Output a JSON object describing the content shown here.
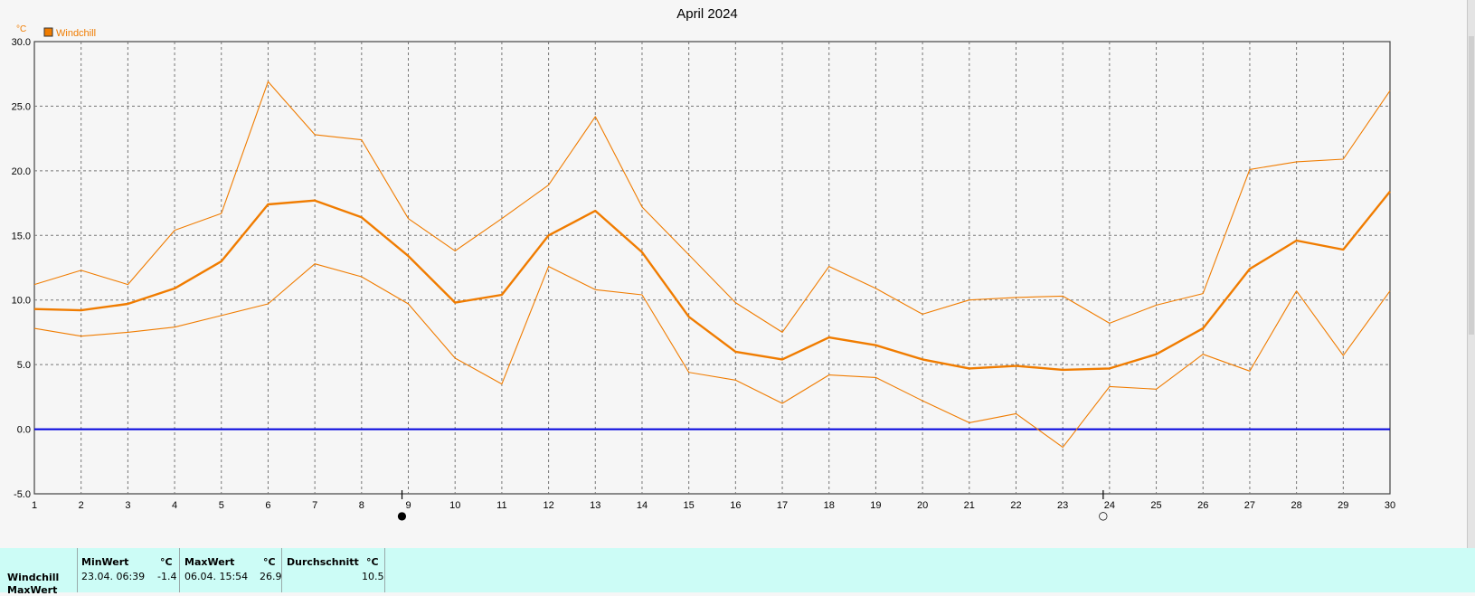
{
  "chart_data": {
    "type": "line",
    "title": "April 2024",
    "ylabel": "°C",
    "xlabel": "",
    "x": [
      1,
      2,
      3,
      4,
      5,
      6,
      7,
      8,
      9,
      10,
      11,
      12,
      13,
      14,
      15,
      16,
      17,
      18,
      19,
      20,
      21,
      22,
      23,
      24,
      25,
      26,
      27,
      28,
      29,
      30
    ],
    "xlim": [
      1,
      30
    ],
    "ylim": [
      -5,
      30
    ],
    "ytick_labels": [
      "-5.0",
      "0.0",
      "5.0",
      "10.0",
      "15.0",
      "20.0",
      "25.0",
      "30.0"
    ],
    "xtick_labels": [
      "1",
      "2",
      "3",
      "4",
      "5",
      "6",
      "7",
      "8",
      "9",
      "10",
      "11",
      "12",
      "13",
      "14",
      "15",
      "16",
      "17",
      "18",
      "19",
      "20",
      "21",
      "22",
      "23",
      "24",
      "25",
      "26",
      "27",
      "28",
      "29",
      "30"
    ],
    "grid": true,
    "legend": {
      "position": "top-left",
      "entries": [
        "Windchill"
      ]
    },
    "series": [
      {
        "name": "Windchill",
        "role": "mean",
        "color": "#f07c00",
        "values": [
          9.3,
          9.2,
          9.7,
          10.9,
          13.0,
          17.4,
          17.7,
          16.4,
          13.4,
          9.8,
          10.4,
          15.0,
          16.9,
          13.7,
          8.7,
          6.0,
          5.4,
          7.1,
          6.5,
          5.4,
          4.7,
          4.9,
          4.6,
          4.7,
          5.8,
          7.8,
          12.4,
          14.6,
          13.9,
          18.4
        ]
      },
      {
        "role": "max",
        "color": "#f07c00",
        "values": [
          11.2,
          12.3,
          11.2,
          15.4,
          16.7,
          26.9,
          22.8,
          22.4,
          16.3,
          13.8,
          16.3,
          18.9,
          24.2,
          17.2,
          13.5,
          9.8,
          7.5,
          12.6,
          10.9,
          8.9,
          10.0,
          10.2,
          10.3,
          8.2,
          9.6,
          10.5,
          20.1,
          20.7,
          20.9,
          26.2
        ]
      },
      {
        "role": "min",
        "color": "#f07c00",
        "values": [
          7.8,
          7.2,
          7.5,
          7.9,
          8.8,
          9.7,
          12.8,
          11.8,
          9.7,
          5.5,
          3.5,
          12.6,
          10.8,
          10.4,
          4.4,
          3.8,
          2.0,
          4.2,
          4.0,
          2.2,
          0.5,
          1.2,
          -1.4,
          3.3,
          3.1,
          5.8,
          4.5,
          10.7,
          5.7,
          10.7
        ]
      }
    ],
    "reference_line": {
      "y": 0,
      "color": "#0000dd"
    },
    "moon_phase_markers": [
      {
        "x": 9,
        "symbol": "●"
      },
      {
        "x": 24,
        "symbol": "○"
      }
    ]
  },
  "stats": {
    "row_label": "Windchill",
    "row_label_2": "MaxWert",
    "min_header": "MinWert",
    "min_unit": "°C",
    "min_datetime": "23.04.  06:39",
    "min_value": "-1.4",
    "max_header": "MaxWert",
    "max_unit": "°C",
    "max_datetime": "06.04.  15:54",
    "max_value": "26.9",
    "avg_header": "Durchschnitt",
    "avg_unit": "°C",
    "avg_value": "10.5"
  }
}
